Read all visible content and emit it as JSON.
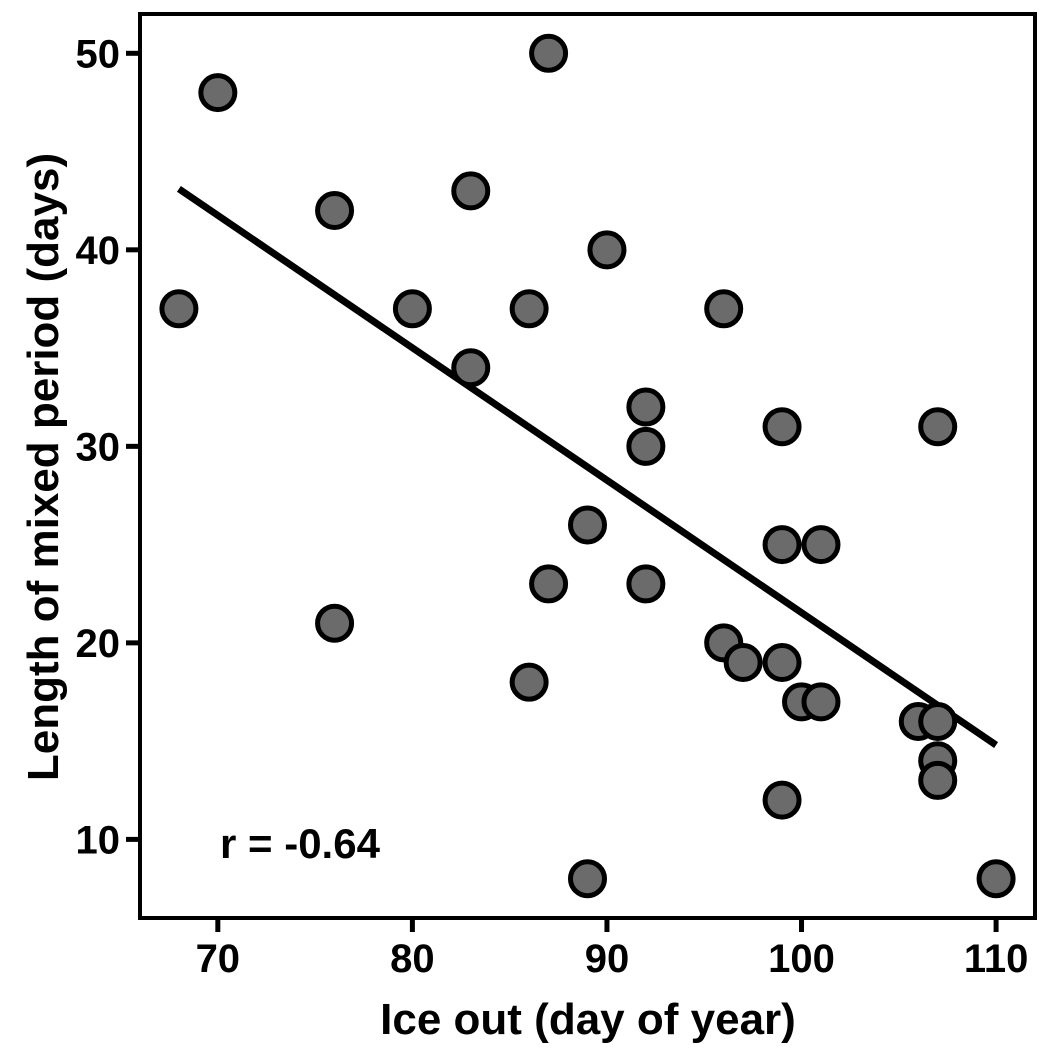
{
  "chart_data": {
    "type": "scatter",
    "xlabel": "Ice out (day of year)",
    "ylabel": "Length of mixed period (days)",
    "xlim": [
      66,
      112
    ],
    "ylim": [
      6,
      52
    ],
    "x_ticks": [
      70,
      80,
      90,
      100,
      110
    ],
    "y_ticks": [
      10,
      20,
      30,
      40,
      50
    ],
    "x_tick_labels": [
      "70",
      "80",
      "90",
      "100",
      "110"
    ],
    "y_tick_labels": [
      "10",
      "20",
      "30",
      "40",
      "50"
    ],
    "grid": false,
    "annotation": "r = -0.64",
    "point_fill": "#6b6b6b",
    "point_stroke": "#000000",
    "line_color": "#000000",
    "points": [
      {
        "x": 68,
        "y": 37
      },
      {
        "x": 70,
        "y": 48
      },
      {
        "x": 76,
        "y": 42
      },
      {
        "x": 76,
        "y": 21
      },
      {
        "x": 80,
        "y": 37
      },
      {
        "x": 83,
        "y": 43
      },
      {
        "x": 83,
        "y": 34
      },
      {
        "x": 86,
        "y": 37
      },
      {
        "x": 86,
        "y": 18
      },
      {
        "x": 87,
        "y": 50
      },
      {
        "x": 87,
        "y": 23
      },
      {
        "x": 89,
        "y": 26
      },
      {
        "x": 89,
        "y": 8
      },
      {
        "x": 90,
        "y": 40
      },
      {
        "x": 92,
        "y": 32
      },
      {
        "x": 92,
        "y": 30
      },
      {
        "x": 92,
        "y": 23
      },
      {
        "x": 96,
        "y": 37
      },
      {
        "x": 96,
        "y": 20
      },
      {
        "x": 97,
        "y": 19
      },
      {
        "x": 99,
        "y": 31
      },
      {
        "x": 99,
        "y": 25
      },
      {
        "x": 99,
        "y": 19
      },
      {
        "x": 99,
        "y": 12
      },
      {
        "x": 100,
        "y": 17
      },
      {
        "x": 101,
        "y": 25
      },
      {
        "x": 101,
        "y": 17
      },
      {
        "x": 106,
        "y": 16
      },
      {
        "x": 107,
        "y": 31
      },
      {
        "x": 107,
        "y": 16
      },
      {
        "x": 107,
        "y": 14
      },
      {
        "x": 107,
        "y": 13
      },
      {
        "x": 110,
        "y": 8
      }
    ],
    "trend_line": {
      "x": [
        68,
        110
      ],
      "y": [
        43.1,
        14.8
      ]
    }
  }
}
